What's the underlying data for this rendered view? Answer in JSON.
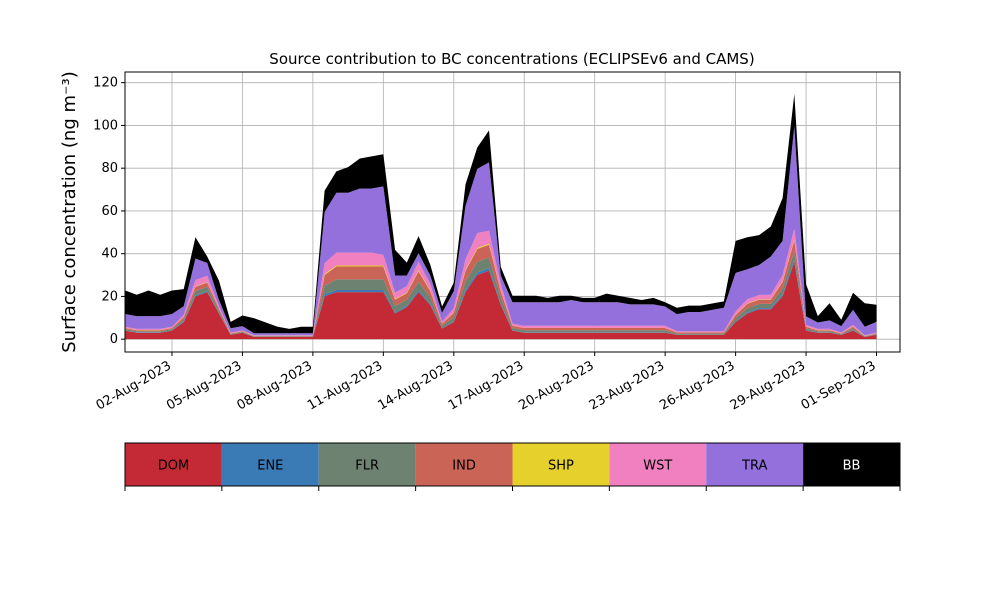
{
  "chart_data": {
    "type": "area",
    "title": "Source contribution to BC concentrations (ECLIPSEv6 and CAMS)",
    "ylabel": "Surface concentration (ng m⁻³)",
    "xlabel": "",
    "xlim": [
      "2023-07-31",
      "2023-09-02"
    ],
    "ylim": [
      -6,
      125
    ],
    "yticks": [
      0,
      20,
      40,
      60,
      80,
      100,
      120
    ],
    "xticks": [
      "02-Aug-2023",
      "05-Aug-2023",
      "08-Aug-2023",
      "11-Aug-2023",
      "14-Aug-2023",
      "17-Aug-2023",
      "20-Aug-2023",
      "23-Aug-2023",
      "26-Aug-2023",
      "29-Aug-2023",
      "01-Sep-2023"
    ],
    "xtick_dates": [
      "2023-08-02",
      "2023-08-05",
      "2023-08-08",
      "2023-08-11",
      "2023-08-14",
      "2023-08-17",
      "2023-08-20",
      "2023-08-23",
      "2023-08-26",
      "2023-08-29",
      "2023-09-01"
    ],
    "grid": true,
    "stacked": true,
    "legend_position": "bottom",
    "x": [
      "2023-07-31T00",
      "2023-07-31T12",
      "2023-08-01T00",
      "2023-08-01T12",
      "2023-08-02T00",
      "2023-08-02T12",
      "2023-08-03T00",
      "2023-08-03T12",
      "2023-08-04T00",
      "2023-08-04T12",
      "2023-08-05T00",
      "2023-08-05T12",
      "2023-08-06T00",
      "2023-08-06T12",
      "2023-08-07T00",
      "2023-08-07T12",
      "2023-08-08T00",
      "2023-08-08T12",
      "2023-08-09T00",
      "2023-08-09T12",
      "2023-08-10T00",
      "2023-08-10T12",
      "2023-08-11T00",
      "2023-08-11T12",
      "2023-08-12T00",
      "2023-08-12T12",
      "2023-08-13T00",
      "2023-08-13T12",
      "2023-08-14T00",
      "2023-08-14T12",
      "2023-08-15T00",
      "2023-08-15T12",
      "2023-08-16T00",
      "2023-08-16T12",
      "2023-08-17T00",
      "2023-08-17T12",
      "2023-08-18T00",
      "2023-08-18T12",
      "2023-08-19T00",
      "2023-08-19T12",
      "2023-08-20T00",
      "2023-08-20T12",
      "2023-08-21T00",
      "2023-08-21T12",
      "2023-08-22T00",
      "2023-08-22T12",
      "2023-08-23T00",
      "2023-08-23T12",
      "2023-08-24T00",
      "2023-08-24T12",
      "2023-08-25T00",
      "2023-08-25T12",
      "2023-08-26T00",
      "2023-08-26T12",
      "2023-08-27T00",
      "2023-08-27T12",
      "2023-08-28T00",
      "2023-08-28T12",
      "2023-08-29T00",
      "2023-08-29T12",
      "2023-08-30T00",
      "2023-08-30T12",
      "2023-08-31T00",
      "2023-08-31T12",
      "2023-09-01T00"
    ],
    "series": [
      {
        "name": "DOM",
        "color": "#c42a35",
        "values": [
          4,
          3,
          3,
          3,
          4,
          8,
          20,
          22,
          12,
          2,
          3,
          1,
          1,
          1,
          1,
          1,
          1,
          20,
          22,
          22,
          22,
          22,
          22,
          12,
          15,
          22,
          16,
          5,
          8,
          22,
          30,
          32,
          16,
          4,
          3,
          3,
          3,
          3,
          3,
          3,
          3,
          3,
          3,
          3,
          3,
          3,
          3,
          2,
          2,
          2,
          2,
          2,
          8,
          12,
          14,
          14,
          20,
          36,
          4,
          3,
          3,
          2,
          4,
          1,
          2
        ]
      },
      {
        "name": "ENE",
        "color": "#3a7ab5",
        "values": [
          0.2,
          0.2,
          0.2,
          0.2,
          0.2,
          0.3,
          0.5,
          0.5,
          0.3,
          0.1,
          0.1,
          0.1,
          0.1,
          0.1,
          0.1,
          0.1,
          0.1,
          1,
          1,
          1,
          1,
          1,
          1,
          0.5,
          0.5,
          0.8,
          0.5,
          0.2,
          0.3,
          1,
          1.2,
          1.2,
          0.5,
          0.2,
          0.2,
          0.2,
          0.2,
          0.2,
          0.2,
          0.2,
          0.2,
          0.2,
          0.2,
          0.2,
          0.2,
          0.2,
          0.2,
          0.1,
          0.1,
          0.1,
          0.1,
          0.1,
          0.3,
          0.5,
          0.5,
          0.5,
          0.7,
          1.2,
          0.2,
          0.2,
          0.2,
          0.1,
          0.2,
          0.1,
          0.1
        ]
      },
      {
        "name": "FLR",
        "color": "#6e8271",
        "values": [
          0.5,
          0.5,
          0.5,
          0.5,
          0.5,
          1,
          2,
          2,
          1,
          0.3,
          0.3,
          0.2,
          0.2,
          0.2,
          0.2,
          0.2,
          0.2,
          4,
          5,
          5,
          5,
          5,
          5,
          3,
          3,
          4,
          3,
          1,
          2,
          4,
          5,
          5,
          3,
          1,
          1,
          1,
          1,
          1,
          1,
          1,
          1,
          1,
          1,
          1,
          1,
          1,
          1,
          0.5,
          0.5,
          0.5,
          0.5,
          0.5,
          1.5,
          2,
          2,
          2,
          3,
          4,
          0.8,
          0.5,
          0.5,
          0.3,
          0.8,
          0.2,
          0.3
        ]
      },
      {
        "name": "IND",
        "color": "#c96456",
        "values": [
          0.5,
          0.5,
          0.5,
          0.5,
          0.5,
          1,
          2,
          2,
          1,
          0.3,
          0.3,
          0.2,
          0.2,
          0.2,
          0.2,
          0.2,
          0.2,
          5,
          6,
          6,
          6,
          6,
          6,
          3,
          3,
          5,
          3,
          1,
          2,
          5,
          6,
          6,
          3,
          1,
          1,
          1,
          1,
          1,
          1,
          1,
          1,
          1,
          1,
          1,
          1,
          1,
          1,
          0.5,
          0.5,
          0.5,
          0.5,
          0.5,
          1.5,
          2,
          2,
          2,
          3,
          5,
          0.8,
          0.5,
          0.5,
          0.3,
          0.8,
          0.2,
          0.3
        ]
      },
      {
        "name": "SHP",
        "color": "#e5d02c",
        "values": [
          0.1,
          0.1,
          0.1,
          0.1,
          0.1,
          0.1,
          0.2,
          0.2,
          0.1,
          0.1,
          0.1,
          0.1,
          0.1,
          0.1,
          0.1,
          0.1,
          0.1,
          0.5,
          0.5,
          0.5,
          0.5,
          0.5,
          0.5,
          0.3,
          0.3,
          0.4,
          0.3,
          0.1,
          0.2,
          0.4,
          0.5,
          0.5,
          0.3,
          0.1,
          0.1,
          0.1,
          0.1,
          0.1,
          0.1,
          0.1,
          0.1,
          0.1,
          0.1,
          0.1,
          0.1,
          0.1,
          0.1,
          0.1,
          0.1,
          0.1,
          0.1,
          0.1,
          0.2,
          0.2,
          0.2,
          0.2,
          0.3,
          0.5,
          0.1,
          0.1,
          0.1,
          0.1,
          0.1,
          0.1,
          0.1
        ]
      },
      {
        "name": "WST",
        "color": "#f080bf",
        "values": [
          0.5,
          0.5,
          0.5,
          0.5,
          0.5,
          1,
          3,
          3,
          1,
          0.3,
          0.3,
          0.2,
          0.2,
          0.2,
          0.2,
          0.2,
          0.2,
          5,
          6,
          6,
          6,
          6,
          5,
          3,
          3,
          4,
          3,
          1,
          2,
          5,
          7,
          6,
          3,
          1,
          1,
          1,
          1,
          1,
          1,
          1,
          1,
          1,
          1,
          1,
          1,
          1,
          1,
          0.5,
          0.5,
          0.5,
          0.5,
          0.5,
          1.5,
          2,
          2,
          2,
          3,
          5,
          0.8,
          0.5,
          0.5,
          0.3,
          0.8,
          0.2,
          0.3
        ]
      },
      {
        "name": "TRA",
        "color": "#9370db",
        "values": [
          6,
          6,
          6,
          6,
          6,
          4,
          10,
          6,
          3,
          2,
          2,
          1,
          1,
          1,
          1,
          1,
          1,
          24,
          28,
          28,
          30,
          30,
          32,
          8,
          5,
          4,
          4,
          4,
          8,
          25,
          30,
          32,
          4,
          10,
          11,
          11,
          11,
          11,
          12,
          11,
          11,
          11,
          11,
          10,
          10,
          10,
          9,
          8,
          9,
          9,
          10,
          11,
          18,
          14,
          14,
          18,
          16,
          48,
          4,
          3,
          4,
          3,
          7,
          4,
          5
        ]
      },
      {
        "name": "BB",
        "color": "#000000",
        "values": [
          11,
          10,
          12,
          10,
          11,
          8,
          10,
          3,
          9,
          3,
          5,
          7,
          5,
          3,
          2,
          3,
          3,
          10,
          10,
          12,
          14,
          15,
          15,
          12,
          6,
          8,
          5,
          3,
          4,
          10,
          10,
          15,
          4,
          3,
          3,
          3,
          2,
          3,
          2,
          2,
          2,
          4,
          3,
          3,
          2,
          3,
          2,
          3,
          3,
          3,
          3,
          3,
          15,
          15,
          14,
          14,
          20,
          15,
          15,
          3,
          8,
          3,
          8,
          11,
          8
        ]
      }
    ],
    "legend": [
      "DOM",
      "ENE",
      "FLR",
      "IND",
      "SHP",
      "WST",
      "TRA",
      "BB"
    ],
    "legend_colors": [
      "#c42a35",
      "#3a7ab5",
      "#6e8271",
      "#c96456",
      "#e5d02c",
      "#f080bf",
      "#9370db",
      "#000000"
    ],
    "legend_text_colors": [
      "#000000",
      "#000000",
      "#000000",
      "#000000",
      "#000000",
      "#000000",
      "#000000",
      "#ffffff"
    ]
  }
}
